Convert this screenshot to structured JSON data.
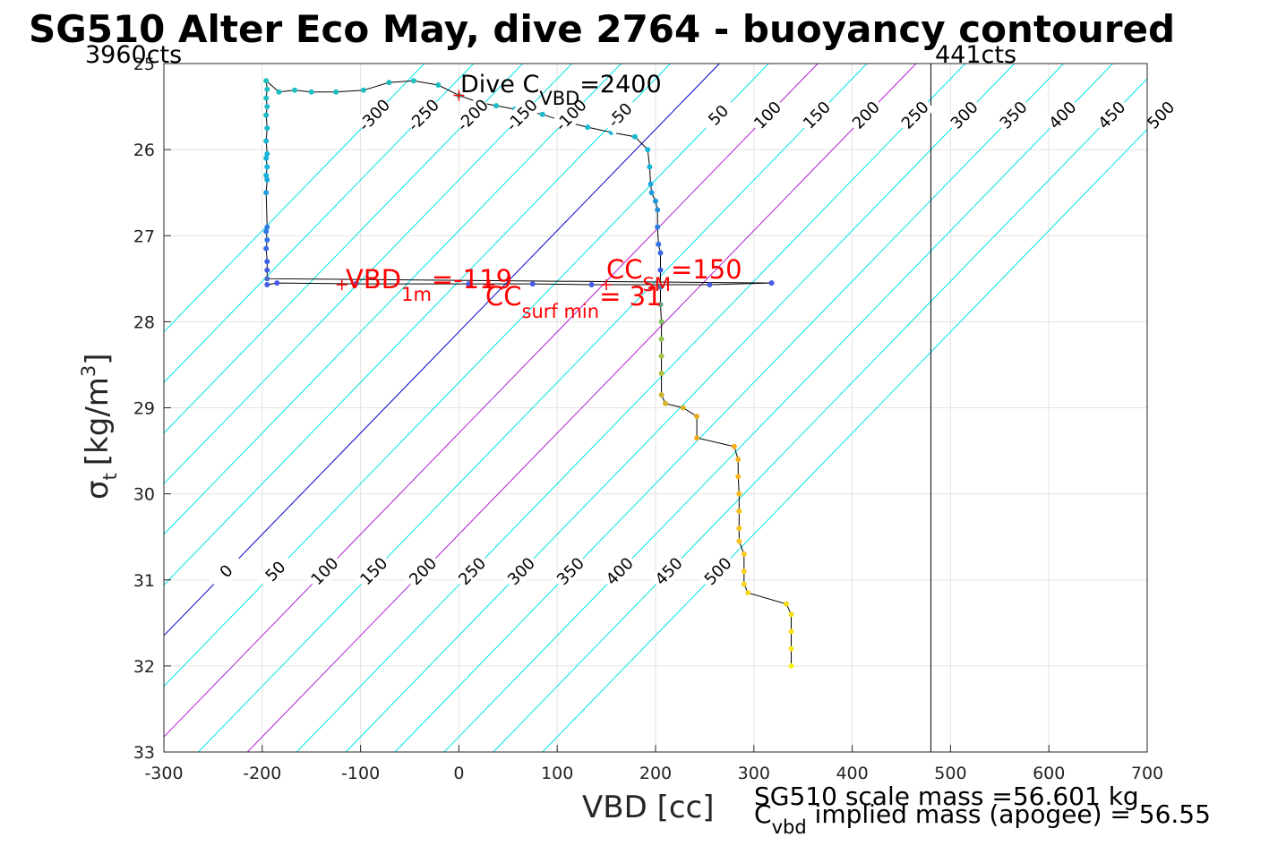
{
  "chart_data": {
    "type": "scatter",
    "title": "SG510 Alter Eco May, dive 2764 - buoyancy contoured",
    "xlabel": "VBD [cc]",
    "ylabel": {
      "base": "σ",
      "sub": "t",
      "unit": "[kg/m",
      "sup": "3",
      "close": "]"
    },
    "xlim": [
      -300,
      700
    ],
    "ylim": [
      25,
      33
    ],
    "y_reversed": true,
    "grid": true,
    "x_ticks": [
      -300,
      -200,
      -100,
      0,
      100,
      200,
      300,
      400,
      500,
      600,
      700
    ],
    "y_ticks": [
      25,
      26,
      27,
      28,
      29,
      30,
      31,
      32,
      33
    ],
    "contour_levels": [
      -300,
      -250,
      -200,
      -150,
      -100,
      -50,
      0,
      50,
      100,
      150,
      200,
      250,
      300,
      350,
      400,
      450,
      500
    ],
    "contour_labels_top": [
      "-300",
      "-250",
      "-200",
      "-150",
      "-100",
      "-50",
      "50",
      "100",
      "150",
      "200",
      "250",
      "300",
      "350",
      "400",
      "450",
      "500"
    ],
    "contour_labels_bottom": [
      "0",
      "50",
      "100",
      "150",
      "200",
      "250",
      "300",
      "350",
      "400",
      "450",
      "500"
    ],
    "contour_colors": {
      "normal": "#00e5e5",
      "zero": "#0000cc",
      "highlight": "#b020d0"
    },
    "vertical_line_x": 480,
    "count_labels": {
      "left": "3960cts",
      "right": "441cts"
    },
    "dive_cvbd": {
      "base": "Dive C",
      "sub": "VBD",
      "value": "=2400",
      "x": 0,
      "y": 25.37
    },
    "vbd_1m": {
      "base": "VBD",
      "sub": "1m",
      "value": "=-119",
      "x": -119,
      "y": 27.57
    },
    "cc_sm": {
      "base": "CC",
      "sub": "SM",
      "value": "=150",
      "x": 150,
      "y": 27.57
    },
    "cc_surf_min": {
      "base": "CC",
      "sub": "surf min",
      "value": "= 31",
      "x": 31,
      "y": 27.57
    },
    "footer": {
      "line1": "SG510 scale mass =56.601 kg",
      "line2_base": "C",
      "line2_sub": "vbd",
      "line2_rest": " implied mass (apogee) = 56.55"
    },
    "profile": [
      [
        -195,
        27.57
      ],
      [
        -185,
        27.55
      ],
      [
        -105,
        27.56
      ],
      [
        10,
        27.56
      ],
      [
        75,
        27.56
      ],
      [
        135,
        27.57
      ],
      [
        255,
        27.57
      ],
      [
        318,
        27.55
      ],
      [
        -195,
        27.5
      ],
      [
        -195,
        27.4
      ],
      [
        -195,
        27.3
      ],
      [
        -196,
        27.15
      ],
      [
        -195,
        27.05
      ],
      [
        -196,
        26.95
      ],
      [
        -195,
        26.9
      ],
      [
        -196,
        26.5
      ],
      [
        -195,
        26.35
      ],
      [
        -196,
        26.3
      ],
      [
        -195,
        26.2
      ],
      [
        -196,
        26.1
      ],
      [
        -195,
        26.05
      ],
      [
        -196,
        25.9
      ],
      [
        -195,
        25.75
      ],
      [
        -196,
        25.6
      ],
      [
        -195,
        25.5
      ],
      [
        -196,
        25.4
      ],
      [
        -195,
        25.3
      ],
      [
        -196,
        25.2
      ],
      [
        -183,
        25.33
      ],
      [
        -167,
        25.31
      ],
      [
        -150,
        25.33
      ],
      [
        -125,
        25.33
      ],
      [
        -97,
        25.31
      ],
      [
        -71,
        25.22
      ],
      [
        -46,
        25.2
      ],
      [
        -21,
        25.25
      ],
      [
        0,
        25.37
      ],
      [
        20,
        25.45
      ],
      [
        38,
        25.49
      ],
      [
        57,
        25.53
      ],
      [
        85,
        25.59
      ],
      [
        103,
        25.66
      ],
      [
        131,
        25.74
      ],
      [
        155,
        25.8
      ],
      [
        179,
        25.85
      ],
      [
        192,
        26.0
      ],
      [
        194,
        26.2
      ],
      [
        195,
        26.4
      ],
      [
        196,
        26.5
      ],
      [
        200,
        26.6
      ],
      [
        202,
        26.7
      ],
      [
        202,
        26.9
      ],
      [
        203,
        27.1
      ],
      [
        205,
        27.2
      ],
      [
        205,
        27.4
      ],
      [
        205,
        27.6
      ],
      [
        205,
        27.8
      ],
      [
        206,
        28.0
      ],
      [
        206,
        28.2
      ],
      [
        206,
        28.4
      ],
      [
        206,
        28.6
      ],
      [
        206,
        28.85
      ],
      [
        210,
        28.95
      ],
      [
        228,
        29.0
      ],
      [
        242,
        29.1
      ],
      [
        242,
        29.35
      ],
      [
        280,
        29.45
      ],
      [
        284,
        29.6
      ],
      [
        284,
        29.8
      ],
      [
        285,
        30.0
      ],
      [
        285,
        30.2
      ],
      [
        285,
        30.4
      ],
      [
        285,
        30.55
      ],
      [
        290,
        30.7
      ],
      [
        290,
        30.9
      ],
      [
        290,
        31.05
      ],
      [
        294,
        31.15
      ],
      [
        333,
        31.28
      ],
      [
        338,
        31.4
      ],
      [
        338,
        31.6
      ],
      [
        338,
        31.8
      ],
      [
        338,
        32.0
      ]
    ]
  }
}
